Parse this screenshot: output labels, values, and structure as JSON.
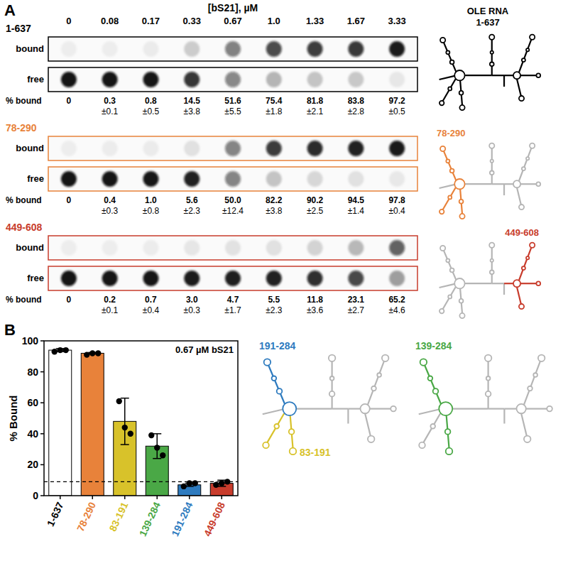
{
  "chart_data": [
    {
      "type": "dot_blot",
      "panel_label": "A",
      "title": "[bS21], µM",
      "categories": [
        "0",
        "0.08",
        "0.17",
        "0.33",
        "0.67",
        "1.0",
        "1.33",
        "1.67",
        "3.33"
      ],
      "row_labels": [
        "bound",
        "free"
      ],
      "value_title": "% bound",
      "structure_title": "OLE RNA",
      "ylim": [
        0,
        100
      ],
      "series": [
        {
          "name": "1-637",
          "color": "#000000",
          "values": [
            0,
            0.3,
            0.8,
            14.5,
            51.6,
            75.4,
            81.8,
            83.8,
            97.2
          ],
          "value_labels": [
            "0",
            "0.3",
            "0.8",
            "14.5",
            "51.6",
            "75.4",
            "81.8",
            "83.8",
            "97.2"
          ],
          "errors": [
            null,
            0.1,
            0.5,
            3.8,
            5.5,
            1.8,
            2.1,
            2.8,
            0.5
          ],
          "error_labels": [
            null,
            "±0.1",
            "±0.5",
            "±3.8",
            "±5.5",
            "±1.8",
            "±2.1",
            "±2.8",
            "±0.5"
          ]
        },
        {
          "name": "78-290",
          "color": "#E8823A",
          "values": [
            0,
            0.4,
            1.0,
            5.6,
            50.0,
            82.2,
            90.2,
            94.5,
            97.8
          ],
          "value_labels": [
            "0",
            "0.4",
            "1.0",
            "5.6",
            "50.0",
            "82.2",
            "90.2",
            "94.5",
            "97.8"
          ],
          "errors": [
            null,
            0.3,
            0.8,
            2.3,
            12.4,
            3.8,
            2.5,
            1.4,
            0.4
          ],
          "error_labels": [
            null,
            "±0.3",
            "±0.8",
            "±2.3",
            "±12.4",
            "±3.8",
            "±2.5",
            "±1.4",
            "±0.4"
          ]
        },
        {
          "name": "449-608",
          "color": "#C83C2C",
          "values": [
            0,
            0.2,
            0.7,
            3.0,
            4.7,
            5.5,
            11.8,
            23.1,
            65.2
          ],
          "value_labels": [
            "0",
            "0.2",
            "0.7",
            "3.0",
            "4.7",
            "5.5",
            "11.8",
            "23.1",
            "65.2"
          ],
          "errors": [
            null,
            0.1,
            0.4,
            0.3,
            1.7,
            2.3,
            3.6,
            2.7,
            4.6
          ],
          "error_labels": [
            null,
            "±0.1",
            "±0.4",
            "±0.3",
            "±1.7",
            "±2.3",
            "±3.6",
            "±2.7",
            "±4.6"
          ]
        }
      ]
    },
    {
      "type": "bar",
      "panel_label": "B",
      "categories": [
        "1-637",
        "78-290",
        "83-191",
        "139-284",
        "191-284",
        "449-608"
      ],
      "values": [
        94,
        92,
        48,
        32,
        7,
        8
      ],
      "errors": [
        1,
        0.5,
        15,
        8,
        1,
        2
      ],
      "replicates": [
        [
          93,
          94,
          94
        ],
        [
          91,
          92,
          92
        ],
        [
          61,
          44,
          40
        ],
        [
          39,
          31,
          26
        ],
        [
          6,
          8,
          8
        ],
        [
          7,
          8,
          9
        ]
      ],
      "colors": [
        "#ffffff",
        "#E8823A",
        "#D8C22A",
        "#4AA846",
        "#2E7BBF",
        "#C83C2C"
      ],
      "ylabel": "% Bound",
      "annotation": "0.67 µM bS21",
      "reference_line": 9,
      "ylim": [
        0,
        100
      ],
      "yticks": [
        0,
        20,
        40,
        60,
        80,
        100
      ],
      "diagrams": [
        [
          "191-284",
          "83-191"
        ],
        [
          "139-284"
        ]
      ]
    }
  ]
}
